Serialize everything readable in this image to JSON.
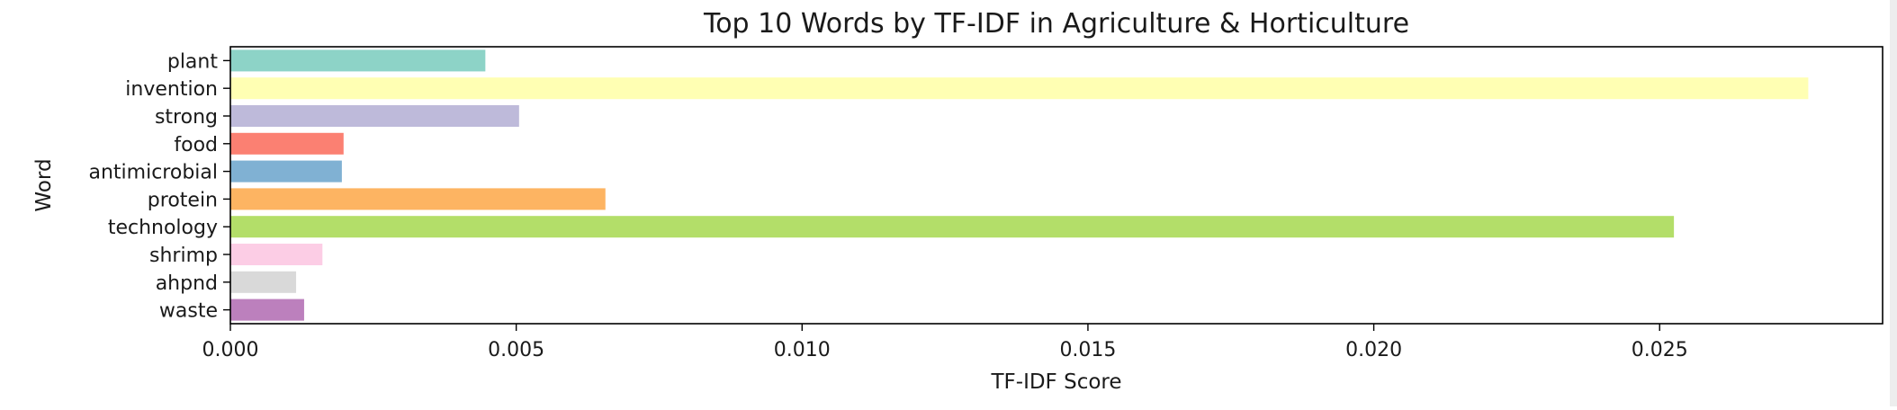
{
  "chart_data": {
    "type": "bar",
    "orientation": "horizontal",
    "title": "Top 10 Words by TF-IDF in Agriculture & Horticulture",
    "xlabel": "TF-IDF Score",
    "ylabel": "Word",
    "xlim": [
      0,
      0.0289
    ],
    "xticks": [
      0.0,
      0.005,
      0.01,
      0.015,
      0.02,
      0.025
    ],
    "xtick_labels": [
      "0.000",
      "0.005",
      "0.010",
      "0.015",
      "0.020",
      "0.025"
    ],
    "grid": false,
    "categories": [
      "plant",
      "invention",
      "strong",
      "food",
      "antimicrobial",
      "protein",
      "technology",
      "shrimp",
      "ahpnd",
      "waste"
    ],
    "values": [
      0.00446,
      0.0276,
      0.00505,
      0.00198,
      0.00195,
      0.00656,
      0.02525,
      0.00161,
      0.00115,
      0.00129
    ],
    "colors": [
      "#8dd3c7",
      "#ffffb3",
      "#bebada",
      "#fb8072",
      "#80b1d3",
      "#fdb462",
      "#b3de69",
      "#fccde5",
      "#d9d9d9",
      "#bc80bd"
    ]
  }
}
